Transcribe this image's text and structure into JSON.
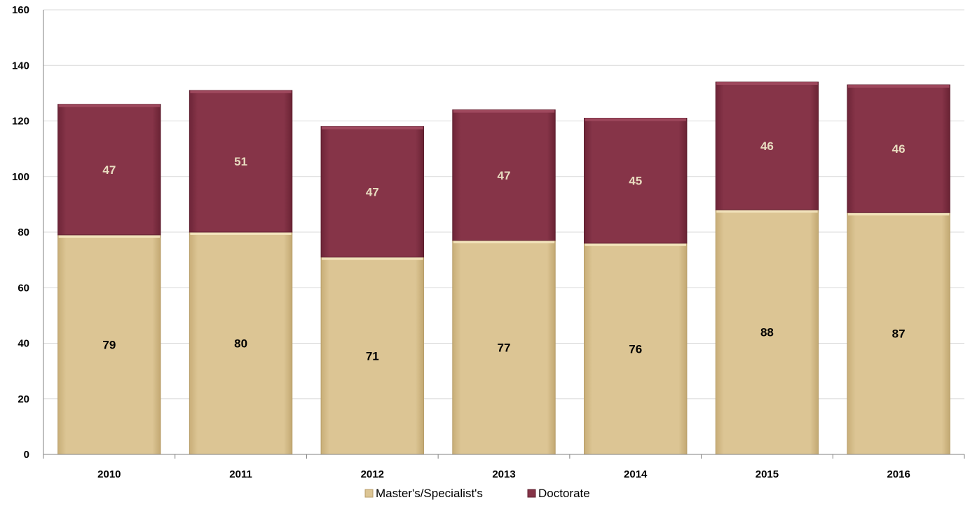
{
  "chart_data": {
    "type": "bar",
    "stacked": true,
    "categories": [
      "2010",
      "2011",
      "2012",
      "2013",
      "2014",
      "2015",
      "2016"
    ],
    "series": [
      {
        "name": "Master's/Specialist's",
        "values": [
          79,
          80,
          71,
          77,
          76,
          88,
          87
        ],
        "color": "#d9c28f",
        "label_color": "#000000"
      },
      {
        "name": "Doctorate",
        "values": [
          47,
          51,
          47,
          47,
          45,
          46,
          46
        ],
        "color": "#843347",
        "label_color": "#e8dcc0"
      }
    ],
    "ylim": [
      0,
      160
    ],
    "yticks": [
      0,
      20,
      40,
      60,
      80,
      100,
      120,
      140,
      160
    ],
    "grid": true,
    "legend_position": "bottom-center",
    "title": "",
    "xlabel": "",
    "ylabel": ""
  }
}
